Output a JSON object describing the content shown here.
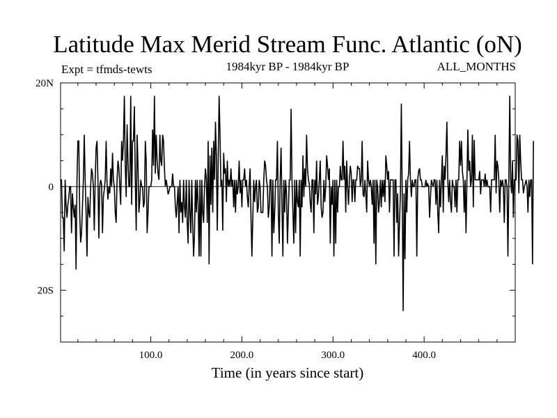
{
  "header": {
    "title": "Latitude Max Merid Stream Func. Atlantic (oN)",
    "experiment": "Expt = tfmds-tewts",
    "period": "1984kyr BP - 1984kyr BP",
    "months": "ALL_MONTHS"
  },
  "chart_data": {
    "type": "line",
    "title": "Latitude Max Merid Stream Func. Atlantic (oN)",
    "xlabel": "Time (in years since start)",
    "ylabel": "",
    "xlim": [
      1,
      500
    ],
    "ylim": [
      -30,
      20
    ],
    "x_ticks": [
      100,
      200,
      300,
      400
    ],
    "x_tick_labels": [
      "100.0",
      "200.0",
      "300.0",
      "400.0"
    ],
    "y_ticks": [
      20,
      0,
      -20
    ],
    "y_tick_labels": [
      "20N",
      "0",
      "20S"
    ],
    "zero_line": true,
    "grid": false,
    "series": [
      {
        "x_start": 1,
        "x_step": 1,
        "values": [
          1.3,
          1.3,
          -6,
          -6,
          -12.5,
          1.3,
          -3.5,
          -6,
          -3.5,
          -2.2,
          0,
          0,
          -9,
          -1.3,
          -4,
          -6,
          -3.5,
          -16,
          1.3,
          8.8,
          8.8,
          -5,
          -10.8,
          -9,
          -4,
          1.3,
          10,
          1.3,
          -5,
          -13.5,
          -2,
          -5,
          -6,
          0,
          3.5,
          2.5,
          0,
          -8.5,
          1.3,
          7.5,
          8.8,
          1.3,
          -10,
          0,
          1.3,
          0.5,
          -9,
          -2,
          -0.5,
          1.3,
          8.8,
          0.5,
          -2.5,
          0,
          -1.3,
          3.5,
          0,
          6.5,
          1.3,
          0,
          -5,
          -7,
          1.3,
          5,
          3.5,
          0,
          -3.5,
          8.8,
          5,
          8.8,
          17.5,
          4,
          -2,
          12,
          5,
          0,
          0,
          17.5,
          -3.5,
          8.8,
          8.8,
          15.5,
          1.3,
          -8.5,
          10,
          4,
          -5,
          -2.5,
          1.3,
          0,
          0,
          -4,
          -3,
          8.8,
          5,
          -9,
          -5,
          0,
          0,
          0,
          1.3,
          11,
          4,
          17.5,
          2.5,
          10,
          5,
          2.5,
          1.3,
          10,
          5,
          4,
          10,
          8.8,
          3.5,
          0,
          1.3,
          0,
          -1.5,
          -1,
          0,
          0,
          0,
          2.5,
          0,
          0,
          -4,
          -6,
          -3,
          0,
          -9,
          1.3,
          -5,
          -3,
          -7,
          1.3,
          -4,
          -6,
          1.3,
          -7,
          -11,
          1.3,
          -5,
          -9,
          1.3,
          -7,
          -13.5,
          -9,
          1.3,
          -5,
          1.3,
          -3.5,
          -13.5,
          1.3,
          -13.5,
          1.3,
          -5,
          -7,
          0,
          3.5,
          1.3,
          -7,
          8.8,
          -15,
          6,
          -3.5,
          7.5,
          -5,
          8.8,
          1.3,
          12.5,
          6,
          -8.5,
          5,
          17.5,
          10,
          0,
          1.3,
          -8.5,
          6.5,
          2.5,
          3.5,
          -3,
          5,
          0,
          1.3,
          0,
          3.5,
          0,
          1.3,
          -4,
          1.3,
          -5,
          1.3,
          -1.5,
          0,
          5,
          -1.3,
          1.3,
          -4,
          1.3,
          1.3,
          3.5,
          0,
          1.3,
          -2,
          -4,
          0,
          3.5,
          -6,
          -13.5,
          -6,
          1.3,
          -3,
          0,
          1.3,
          -5,
          -4,
          1.3,
          0,
          -5,
          -5,
          -5,
          1.3,
          5,
          4,
          1.3,
          0,
          -6,
          -4,
          1.3,
          1.3,
          -13.5,
          1.3,
          -9,
          -5,
          1.3,
          1.3,
          8.8,
          -5,
          -11,
          1.3,
          7.5,
          -3.5,
          -13.5,
          1.3,
          -5,
          1.3,
          -1.5,
          -11,
          -5,
          1.3,
          1.3,
          15,
          1.3,
          -5,
          -11,
          1.3,
          -9,
          1.3,
          -3,
          -4,
          1.3,
          -13.5,
          1.3,
          -4,
          6,
          -2,
          3.5,
          0,
          10,
          3.5,
          1.3,
          0.5,
          -3,
          -5,
          1.3,
          1.3,
          -9,
          1.3,
          -1.5,
          5,
          -3.5,
          -2,
          1.3,
          5,
          -4,
          -6,
          -5,
          1.3,
          -3,
          0,
          6,
          4,
          1.3,
          3.5,
          -11,
          0,
          -3.5,
          1.3,
          -13.5,
          1.3,
          -11,
          1.3,
          -5,
          0,
          0,
          4,
          1.3,
          1.3,
          8.8,
          1.3,
          4,
          -5,
          5,
          0,
          -3.5,
          1.3,
          4,
          2.5,
          -3,
          1.3,
          1.3,
          -3,
          1.3,
          1.3,
          4,
          3.5,
          3.5,
          0,
          1.3,
          8.8,
          -1.5,
          -2,
          1.3,
          -1.5,
          -5,
          5,
          1.3,
          0,
          1.3,
          0,
          -3.5,
          1.3,
          -11,
          1.3,
          -15,
          1.3,
          0,
          -5,
          -3,
          1.3,
          -4,
          1.3,
          -2,
          1.3,
          -3,
          6,
          4,
          1.3,
          3,
          -5,
          1.3,
          1.3,
          1.3,
          1.3,
          -13.5,
          1.3,
          1.3,
          -7,
          -1.3,
          -13.5,
          -7,
          -1.3,
          16,
          -2,
          -24,
          -1.3,
          -14,
          1.3,
          -5,
          1.3,
          2.5,
          8.8,
          1.3,
          -2,
          1.3,
          0,
          0,
          1.3,
          1.3,
          -13.5,
          1.3,
          3,
          3.5,
          1.3,
          1.3,
          0,
          0,
          0,
          0,
          1.3,
          0,
          0.5,
          0,
          -6,
          -2,
          1.3,
          0.5,
          0,
          1.3,
          1.3,
          -3.5,
          1.3,
          -5,
          -9,
          1.3,
          -4,
          1.3,
          6,
          -5,
          4,
          1.3,
          6,
          12.5,
          1.3,
          -3,
          1.3,
          -3,
          -5,
          1.3,
          0,
          0,
          -4,
          1.3,
          -5,
          1.3,
          1.3,
          8.8,
          4,
          8.8,
          3,
          1.3,
          -5,
          1.3,
          -9,
          1.3,
          11,
          3,
          5,
          0,
          1.3,
          10,
          -4,
          9,
          1.3,
          1.3,
          1.3,
          1.3,
          1.3,
          3,
          -1.5,
          1.3,
          1.3,
          1.3,
          0,
          2.5,
          0,
          1.3,
          0,
          0,
          0,
          -5,
          1.3,
          1.3,
          1.3,
          1.3,
          10,
          -1.3,
          5,
          4,
          1.3,
          -5,
          1.3,
          0,
          1.3,
          0,
          -7,
          1.3,
          1.3,
          0,
          -13.5,
          1.3,
          17.5,
          1.3,
          -1.3,
          5,
          -6,
          1.3,
          1.3,
          1.3,
          10,
          8.8,
          -1.3,
          10,
          5,
          1.3,
          1.3,
          -1.3,
          0,
          0.5,
          1.3,
          0,
          -5,
          1.3,
          -2,
          1.3,
          1.3,
          -15,
          8.8
        ]
      }
    ]
  }
}
